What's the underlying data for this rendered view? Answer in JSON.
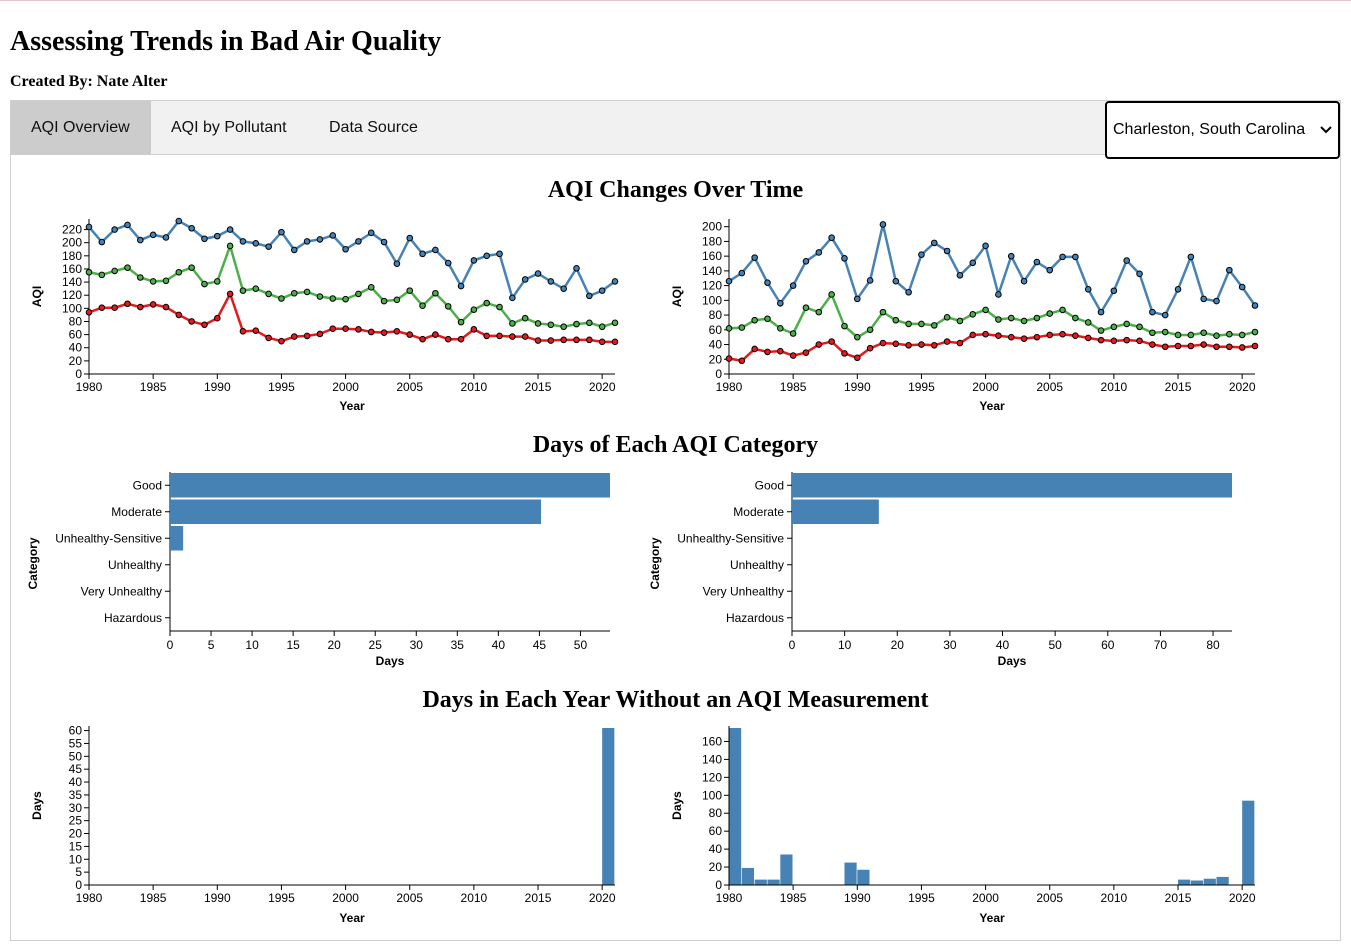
{
  "header": {
    "title": "Assessing Trends in Bad Air Quality",
    "byline": "Created By: Nate Alter"
  },
  "tabs": [
    {
      "label": "AQI Overview",
      "active": true
    },
    {
      "label": "AQI by Pollutant",
      "active": false
    },
    {
      "label": "Data Source",
      "active": false
    }
  ],
  "location_select": {
    "value": "Charleston, South Carolina",
    "icon": "chevron-down-icon"
  },
  "sections": {
    "trend_title": "AQI Changes Over Time",
    "category_title": "Days of Each AQI Category",
    "missing_title": "Days in Each Year Without an AQI Measurement"
  },
  "colors": {
    "max": "#4682b4",
    "p90": "#4daf4a",
    "median": "#e41a1c",
    "bar": "#4682b4"
  },
  "chart_data": [
    {
      "type": "line",
      "xlabel": "Year",
      "ylabel": "AQI",
      "xlim": [
        1980,
        2021
      ],
      "ylim": [
        0,
        230
      ],
      "xticks": [
        1980,
        1985,
        1990,
        1995,
        2000,
        2005,
        2010,
        2015,
        2020
      ],
      "yticks": [
        0,
        20,
        40,
        60,
        80,
        100,
        120,
        140,
        160,
        180,
        200,
        220
      ],
      "x": [
        1980,
        1981,
        1982,
        1983,
        1984,
        1985,
        1986,
        1987,
        1988,
        1989,
        1990,
        1991,
        1992,
        1993,
        1994,
        1995,
        1996,
        1997,
        1998,
        1999,
        2000,
        2001,
        2002,
        2003,
        2004,
        2005,
        2006,
        2007,
        2008,
        2009,
        2010,
        2011,
        2012,
        2013,
        2014,
        2015,
        2016,
        2017,
        2018,
        2019,
        2020,
        2021
      ],
      "series": [
        {
          "color_key": "max",
          "values": [
            224,
            201,
            220,
            227,
            204,
            212,
            208,
            233,
            222,
            206,
            210,
            220,
            202,
            199,
            194,
            216,
            189,
            202,
            205,
            211,
            190,
            202,
            215,
            201,
            168,
            207,
            183,
            189,
            169,
            134,
            173,
            180,
            183,
            116,
            144,
            153,
            141,
            130,
            161,
            119,
            127,
            141
          ]
        },
        {
          "color_key": "p90",
          "values": [
            155,
            151,
            157,
            162,
            147,
            141,
            142,
            155,
            162,
            137,
            141,
            195,
            127,
            130,
            122,
            115,
            123,
            125,
            118,
            115,
            114,
            122,
            132,
            111,
            113,
            127,
            104,
            123,
            103,
            79,
            98,
            108,
            102,
            77,
            85,
            77,
            75,
            72,
            76,
            78,
            72,
            78
          ]
        },
        {
          "color_key": "median",
          "values": [
            94,
            101,
            101,
            107,
            102,
            106,
            102,
            90,
            80,
            75,
            85,
            122,
            65,
            66,
            55,
            50,
            57,
            58,
            61,
            69,
            69,
            68,
            64,
            63,
            65,
            60,
            53,
            60,
            53,
            53,
            68,
            58,
            58,
            57,
            57,
            51,
            51,
            52,
            52,
            52,
            49,
            49
          ]
        }
      ]
    },
    {
      "type": "line",
      "xlabel": "Year",
      "ylabel": "AQI",
      "xlim": [
        1980,
        2021
      ],
      "ylim": [
        0,
        205
      ],
      "xticks": [
        1980,
        1985,
        1990,
        1995,
        2000,
        2005,
        2010,
        2015,
        2020
      ],
      "yticks": [
        0,
        20,
        40,
        60,
        80,
        100,
        120,
        140,
        160,
        180,
        200
      ],
      "x": [
        1980,
        1981,
        1982,
        1983,
        1984,
        1985,
        1986,
        1987,
        1988,
        1989,
        1990,
        1991,
        1992,
        1993,
        1994,
        1995,
        1996,
        1997,
        1998,
        1999,
        2000,
        2001,
        2002,
        2003,
        2004,
        2005,
        2006,
        2007,
        2008,
        2009,
        2010,
        2011,
        2012,
        2013,
        2014,
        2015,
        2016,
        2017,
        2018,
        2019,
        2020,
        2021
      ],
      "series": [
        {
          "color_key": "max",
          "values": [
            126,
            137,
            158,
            124,
            96,
            120,
            153,
            165,
            185,
            157,
            102,
            127,
            203,
            126,
            111,
            162,
            178,
            167,
            134,
            151,
            174,
            108,
            160,
            126,
            152,
            141,
            159,
            159,
            115,
            84,
            113,
            154,
            136,
            84,
            80,
            115,
            159,
            102,
            99,
            141,
            118,
            93
          ]
        },
        {
          "color_key": "p90",
          "values": [
            62,
            63,
            73,
            75,
            62,
            55,
            90,
            84,
            108,
            65,
            50,
            60,
            84,
            73,
            68,
            68,
            66,
            77,
            72,
            81,
            87,
            74,
            76,
            72,
            76,
            82,
            87,
            76,
            70,
            59,
            64,
            68,
            64,
            56,
            57,
            53,
            53,
            56,
            52,
            54,
            53,
            57
          ]
        },
        {
          "color_key": "median",
          "values": [
            21,
            18,
            34,
            30,
            31,
            25,
            29,
            40,
            44,
            28,
            22,
            35,
            42,
            41,
            39,
            40,
            39,
            44,
            42,
            53,
            54,
            52,
            50,
            48,
            50,
            53,
            54,
            52,
            49,
            46,
            45,
            46,
            45,
            40,
            37,
            38,
            38,
            40,
            37,
            37,
            36,
            38
          ]
        }
      ]
    },
    {
      "type": "bar",
      "orientation": "horizontal",
      "xlabel": "Days",
      "ylabel": "Category",
      "xlim": [
        0,
        53.6
      ],
      "xticks": [
        0,
        5,
        10,
        15,
        20,
        25,
        30,
        35,
        40,
        45,
        50
      ],
      "categories": [
        "Good",
        "Moderate",
        "Unhealthy-Sensitive",
        "Unhealthy",
        "Very Unhealthy",
        "Hazardous"
      ],
      "values": [
        53.6,
        45.2,
        1.6,
        0,
        0,
        0
      ]
    },
    {
      "type": "bar",
      "orientation": "horizontal",
      "xlabel": "Days",
      "ylabel": "Category",
      "xlim": [
        0,
        83.6
      ],
      "xticks": [
        0,
        10,
        20,
        30,
        40,
        50,
        60,
        70,
        80
      ],
      "categories": [
        "Good",
        "Moderate",
        "Unhealthy-Sensitive",
        "Unhealthy",
        "Very Unhealthy",
        "Hazardous"
      ],
      "values": [
        83.6,
        16.5,
        0,
        0,
        0,
        0
      ]
    },
    {
      "type": "bar",
      "xlabel": "Year",
      "ylabel": "Days",
      "xlim": [
        1980,
        2021
      ],
      "ylim": [
        0,
        61
      ],
      "xticks": [
        1980,
        1985,
        1990,
        1995,
        2000,
        2005,
        2010,
        2015,
        2020
      ],
      "yticks": [
        0,
        5,
        10,
        15,
        20,
        25,
        30,
        35,
        40,
        45,
        50,
        55,
        60
      ],
      "x": [
        2020
      ],
      "values": [
        61
      ]
    },
    {
      "type": "bar",
      "xlabel": "Year",
      "ylabel": "Days",
      "xlim": [
        1980,
        2021
      ],
      "ylim": [
        0,
        175
      ],
      "xticks": [
        1980,
        1985,
        1990,
        1995,
        2000,
        2005,
        2010,
        2015,
        2020
      ],
      "yticks": [
        0,
        20,
        40,
        60,
        80,
        100,
        120,
        140,
        160
      ],
      "x": [
        1980,
        1981,
        1982,
        1983,
        1984,
        1989,
        1990,
        2015,
        2016,
        2017,
        2018,
        2020
      ],
      "values": [
        175,
        19,
        6,
        6,
        34,
        25,
        17,
        6,
        5,
        7,
        9,
        94
      ]
    }
  ]
}
